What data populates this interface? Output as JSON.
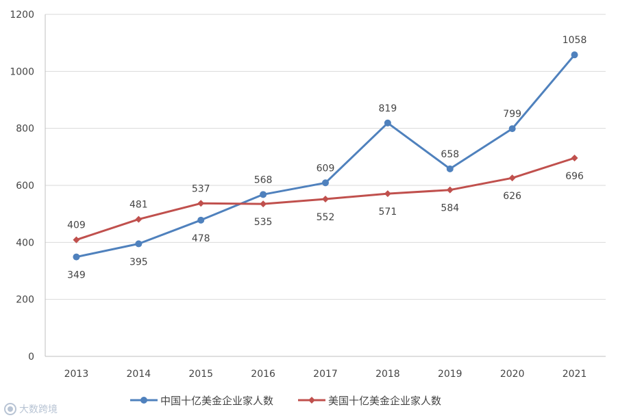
{
  "chart_data": {
    "type": "line",
    "title": "",
    "xlabel": "",
    "ylabel": "",
    "ylim": [
      0,
      1200
    ],
    "yticks": [
      0,
      200,
      400,
      600,
      800,
      1000,
      1200
    ],
    "categories": [
      "2013",
      "2014",
      "2015",
      "2016",
      "2017",
      "2018",
      "2019",
      "2020",
      "2021"
    ],
    "grid": true,
    "legend_position": "bottom",
    "series": [
      {
        "name": "中国十亿美金企业家人数",
        "color": "#4f81bd",
        "marker": "circle",
        "values": [
          349,
          395,
          478,
          568,
          609,
          819,
          658,
          799,
          1058
        ],
        "labels": [
          "349",
          "395",
          "478",
          "568",
          "609",
          "819",
          "658",
          "799",
          "1058"
        ]
      },
      {
        "name": "美国十亿美金企业家人数",
        "color": "#c0504d",
        "marker": "diamond",
        "values": [
          409,
          481,
          537,
          535,
          552,
          571,
          584,
          626,
          696
        ],
        "labels": [
          "409",
          "481",
          "537",
          "535",
          "552",
          "571",
          "584",
          "626",
          "696"
        ]
      }
    ]
  },
  "watermark": {
    "text": "大数跨境",
    "icon": "brand-logo-icon"
  }
}
